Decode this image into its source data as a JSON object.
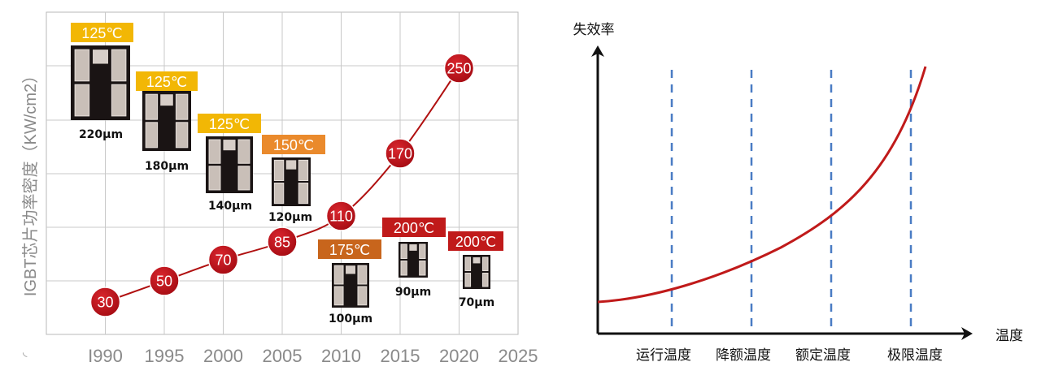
{
  "chart_data": [
    {
      "type": "line",
      "ylabel": "IGBT芯片功率密度（KW/cm2）",
      "x_ticks": [
        "I990",
        "1995",
        "2000",
        "2005",
        "2010",
        "2015",
        "2020",
        "2025"
      ],
      "x": [
        1990,
        1995,
        2000,
        2005,
        2010,
        2015,
        2020
      ],
      "values": [
        30,
        50,
        70,
        85,
        110,
        170,
        250
      ],
      "value_labels": [
        "30",
        "50",
        "70",
        "85",
        "110",
        "170",
        "250"
      ],
      "xlim": [
        1985,
        2025
      ],
      "grid": true,
      "line_color": "#b01010",
      "marker_color": "#c0141c",
      "chips": [
        {
          "year": 1990,
          "temperature": "125℃",
          "thickness": "220μm",
          "tag_color": "#f2b705"
        },
        {
          "year": 1995,
          "temperature": "125℃",
          "thickness": "180μm",
          "tag_color": "#f2b705"
        },
        {
          "year": 2000,
          "temperature": "125℃",
          "thickness": "140μm",
          "tag_color": "#f2b705"
        },
        {
          "year": 2005,
          "temperature": "150℃",
          "thickness": "120μm",
          "tag_color": "#ea8a2c"
        },
        {
          "year": 2010,
          "temperature": "175℃",
          "thickness": "100μm",
          "tag_color": "#c8651c"
        },
        {
          "year": 2015,
          "temperature": "200℃",
          "thickness": "90μm",
          "tag_color": "#c01a1a"
        },
        {
          "year": 2020,
          "temperature": "200℃",
          "thickness": "70μm",
          "tag_color": "#c01a1a"
        }
      ]
    },
    {
      "type": "line",
      "ylabel": "失效率",
      "xlabel": "温度",
      "categories": [
        "运行温度",
        "降额温度",
        "额定温度",
        "极限温度"
      ],
      "curve": "exponential",
      "line_color": "#c01a1a",
      "marker_line_color": "#4a7cc4"
    }
  ]
}
